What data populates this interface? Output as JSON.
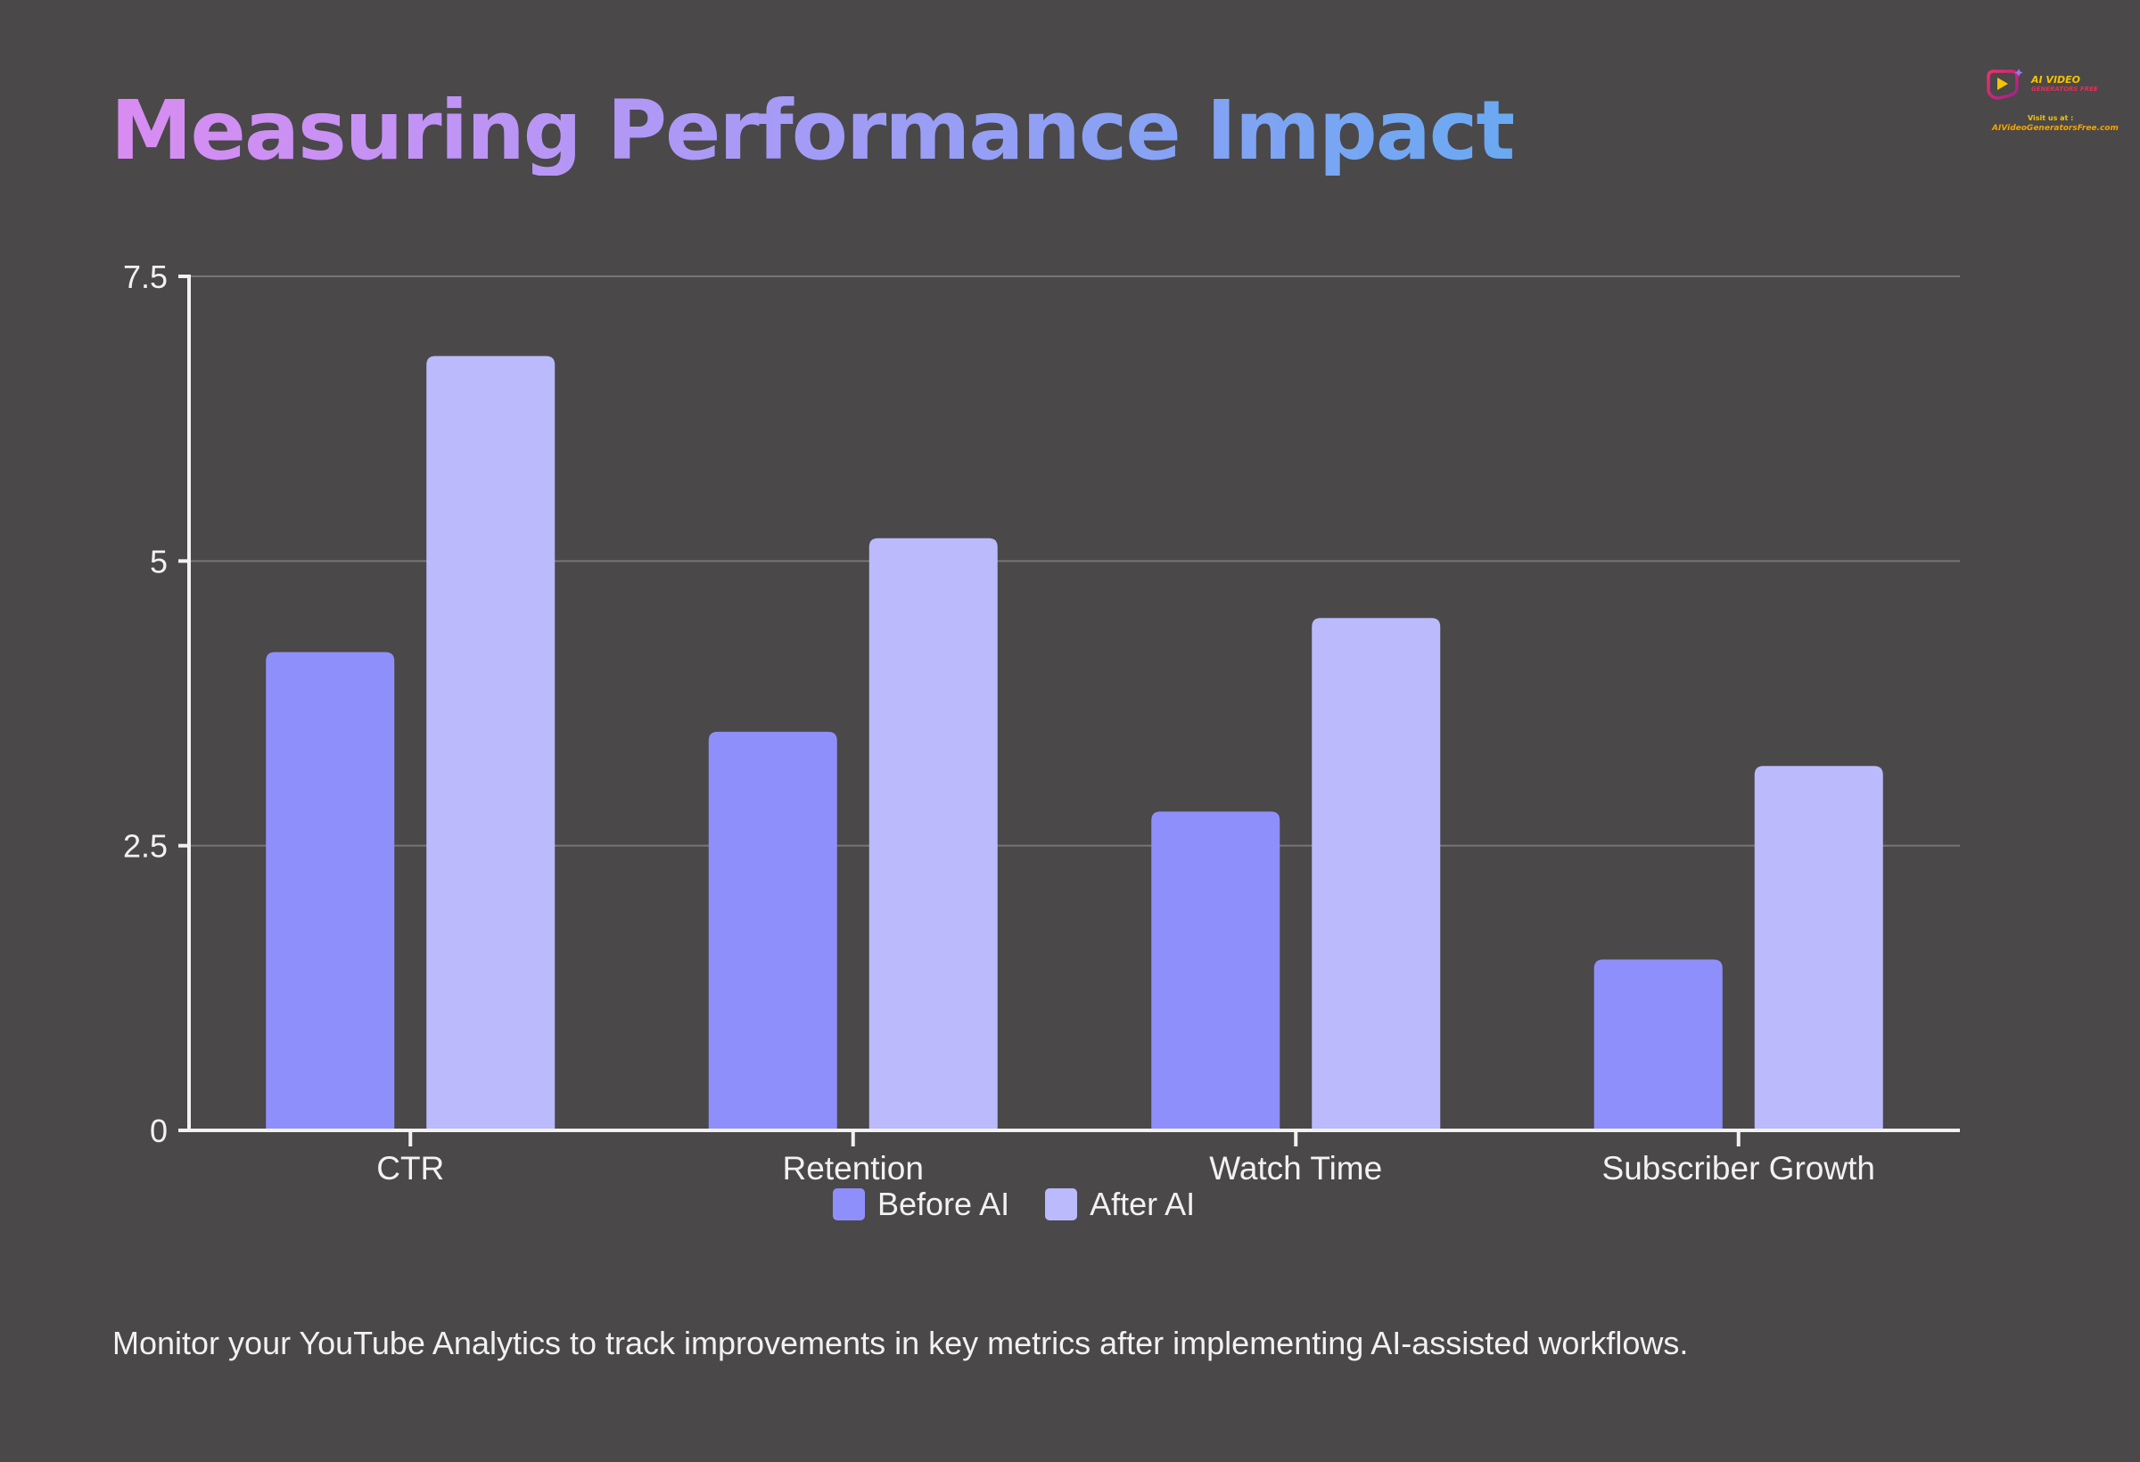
{
  "title": "Measuring Performance Impact",
  "logo": {
    "brand_line1": "AI VIDEO",
    "brand_line2": "GENERATORS FREE",
    "visit_text": "Visit us at :",
    "url_text": "AIVideoGeneratorsFree.com"
  },
  "caption": "Monitor your YouTube Analytics to track improvements in key metrics after implementing AI-assisted workflows.",
  "colors": {
    "background": "#4a4849",
    "before": "#8f8ffc",
    "after": "#babafd",
    "grid": "#777577",
    "axis": "#f2f2f2",
    "text": "#f2f2f2"
  },
  "chart_data": {
    "type": "bar",
    "title": "Measuring Performance Impact",
    "xlabel": "",
    "ylabel": "",
    "categories": [
      "CTR",
      "Retention",
      "Watch Time",
      "Subscriber Growth"
    ],
    "series": [
      {
        "name": "Before AI",
        "color": "#8f8ffc",
        "values": [
          4.2,
          3.5,
          2.8,
          1.5
        ]
      },
      {
        "name": "After AI",
        "color": "#babafd",
        "values": [
          6.8,
          5.2,
          4.5,
          3.2
        ]
      }
    ],
    "ylim": [
      0,
      7.5
    ],
    "yticks": [
      0,
      2.5,
      5,
      7.5
    ],
    "ytick_labels": [
      "0",
      "2.5",
      "5",
      "7.5"
    ],
    "grid": true,
    "legend": "bottom-center"
  }
}
